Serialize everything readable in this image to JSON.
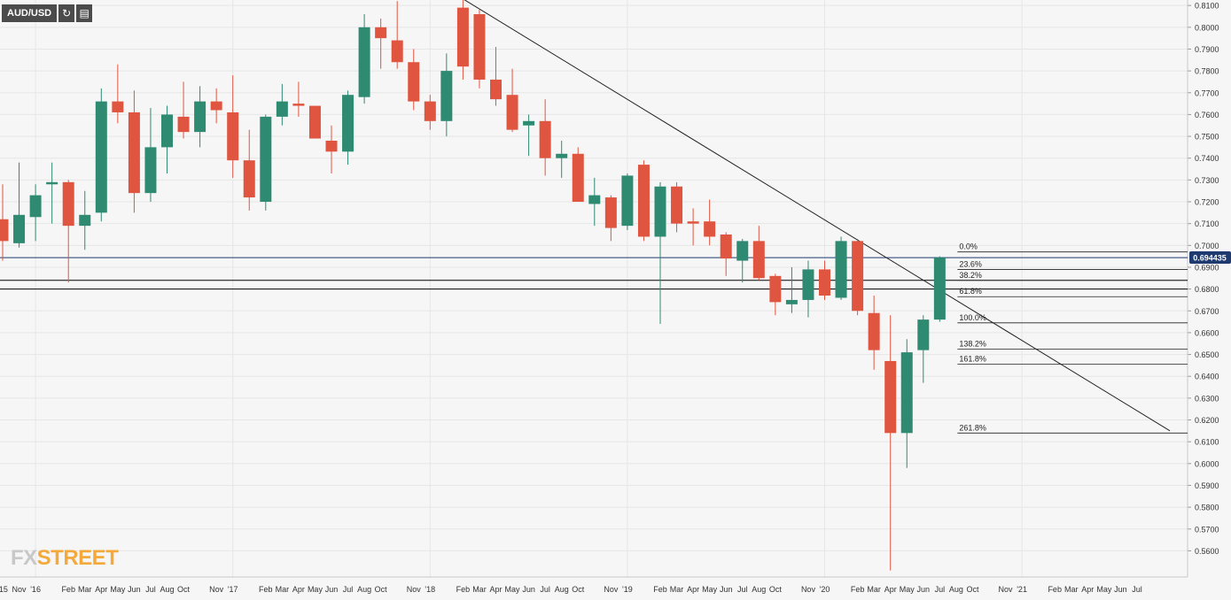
{
  "header": {
    "symbol": "AUD/USD",
    "refresh_icon": "refresh-icon",
    "calendar_icon": "calendar-icon"
  },
  "logo": {
    "part1": "FX",
    "part2": "STREET"
  },
  "colors": {
    "up": "#2f8a72",
    "down": "#e0553f",
    "price_line": "#1e3a6e",
    "grid": "#e6e6e6",
    "text": "#333333"
  },
  "chart_data": {
    "type": "candlestick",
    "interval": "monthly",
    "ylim": [
      0.548,
      0.8125
    ],
    "y_ticks": [
      "0.8100",
      "0.8000",
      "0.7900",
      "0.7800",
      "0.7700",
      "0.7600",
      "0.7500",
      "0.7400",
      "0.7300",
      "0.7200",
      "0.7100",
      "0.7000",
      "0.6900",
      "0.6800",
      "0.6700",
      "0.6600",
      "0.6500",
      "0.6400",
      "0.6300",
      "0.6200",
      "0.6100",
      "0.6000",
      "0.5900",
      "0.5800",
      "0.5700",
      "0.5600"
    ],
    "x_ticks": [
      "'15",
      "Nov",
      "'16",
      "Feb",
      "Mar",
      "Apr",
      "May",
      "Jun",
      "Jul",
      "Aug",
      "Oct",
      "Nov",
      "'17",
      "Feb",
      "Mar",
      "Apr",
      "May",
      "Jun",
      "Jul",
      "Aug",
      "Oct",
      "Nov",
      "'18",
      "Feb",
      "Mar",
      "Apr",
      "May",
      "Jun",
      "Jul",
      "Aug",
      "Oct",
      "Nov",
      "'19",
      "Feb",
      "Mar",
      "Apr",
      "May",
      "Jun",
      "Jul",
      "Aug",
      "Oct",
      "Nov",
      "'20",
      "Feb",
      "Mar",
      "Apr",
      "May",
      "Jun",
      "Jul",
      "Aug",
      "Oct",
      "Nov",
      "'21",
      "Feb",
      "Mar",
      "Apr",
      "May",
      "Jun",
      "Jul"
    ],
    "current_price": "0.694435",
    "candles": [
      {
        "d": "2015-09",
        "o": 0.712,
        "h": 0.728,
        "l": 0.693,
        "c": 0.702
      },
      {
        "d": "2015-10",
        "o": 0.701,
        "h": 0.738,
        "l": 0.699,
        "c": 0.714
      },
      {
        "d": "2015-11",
        "o": 0.713,
        "h": 0.728,
        "l": 0.702,
        "c": 0.723
      },
      {
        "d": "2015-12",
        "o": 0.728,
        "h": 0.738,
        "l": 0.71,
        "c": 0.729
      },
      {
        "d": "2016-01",
        "o": 0.729,
        "h": 0.73,
        "l": 0.683,
        "c": 0.709
      },
      {
        "d": "2016-02",
        "o": 0.709,
        "h": 0.725,
        "l": 0.698,
        "c": 0.714
      },
      {
        "d": "2016-03",
        "o": 0.715,
        "h": 0.772,
        "l": 0.711,
        "c": 0.766
      },
      {
        "d": "2016-04",
        "o": 0.766,
        "h": 0.783,
        "l": 0.756,
        "c": 0.761
      },
      {
        "d": "2016-05",
        "o": 0.761,
        "h": 0.771,
        "l": 0.715,
        "c": 0.724
      },
      {
        "d": "2016-06",
        "o": 0.724,
        "h": 0.763,
        "l": 0.72,
        "c": 0.745
      },
      {
        "d": "2016-07",
        "o": 0.745,
        "h": 0.764,
        "l": 0.733,
        "c": 0.76
      },
      {
        "d": "2016-08",
        "o": 0.759,
        "h": 0.775,
        "l": 0.749,
        "c": 0.752
      },
      {
        "d": "2016-09",
        "o": 0.752,
        "h": 0.773,
        "l": 0.745,
        "c": 0.766
      },
      {
        "d": "2016-10",
        "o": 0.766,
        "h": 0.772,
        "l": 0.756,
        "c": 0.762
      },
      {
        "d": "2016-11",
        "o": 0.761,
        "h": 0.778,
        "l": 0.731,
        "c": 0.739
      },
      {
        "d": "2016-12",
        "o": 0.739,
        "h": 0.753,
        "l": 0.716,
        "c": 0.722
      },
      {
        "d": "2017-01",
        "o": 0.72,
        "h": 0.76,
        "l": 0.716,
        "c": 0.759
      },
      {
        "d": "2017-02",
        "o": 0.759,
        "h": 0.774,
        "l": 0.755,
        "c": 0.766
      },
      {
        "d": "2017-03",
        "o": 0.765,
        "h": 0.775,
        "l": 0.759,
        "c": 0.764
      },
      {
        "d": "2017-04",
        "o": 0.764,
        "h": 0.764,
        "l": 0.749,
        "c": 0.749
      },
      {
        "d": "2017-05",
        "o": 0.748,
        "h": 0.755,
        "l": 0.733,
        "c": 0.743
      },
      {
        "d": "2017-06",
        "o": 0.743,
        "h": 0.771,
        "l": 0.737,
        "c": 0.769
      },
      {
        "d": "2017-07",
        "o": 0.768,
        "h": 0.806,
        "l": 0.765,
        "c": 0.8
      },
      {
        "d": "2017-08",
        "o": 0.8,
        "h": 0.804,
        "l": 0.781,
        "c": 0.795
      },
      {
        "d": "2017-09",
        "o": 0.794,
        "h": 0.812,
        "l": 0.781,
        "c": 0.784
      },
      {
        "d": "2017-10",
        "o": 0.784,
        "h": 0.79,
        "l": 0.762,
        "c": 0.766
      },
      {
        "d": "2017-11",
        "o": 0.766,
        "h": 0.769,
        "l": 0.753,
        "c": 0.757
      },
      {
        "d": "2017-12",
        "o": 0.757,
        "h": 0.788,
        "l": 0.75,
        "c": 0.78
      },
      {
        "d": "2018-01",
        "o": 0.809,
        "h": 0.813,
        "l": 0.776,
        "c": 0.782
      },
      {
        "d": "2018-02",
        "o": 0.806,
        "h": 0.808,
        "l": 0.772,
        "c": 0.776
      },
      {
        "d": "2018-03",
        "o": 0.776,
        "h": 0.791,
        "l": 0.764,
        "c": 0.767
      },
      {
        "d": "2018-04",
        "o": 0.769,
        "h": 0.781,
        "l": 0.752,
        "c": 0.753
      },
      {
        "d": "2018-05",
        "o": 0.755,
        "h": 0.76,
        "l": 0.741,
        "c": 0.757
      },
      {
        "d": "2018-06",
        "o": 0.757,
        "h": 0.767,
        "l": 0.732,
        "c": 0.74
      },
      {
        "d": "2018-07",
        "o": 0.74,
        "h": 0.748,
        "l": 0.731,
        "c": 0.742
      },
      {
        "d": "2018-08",
        "o": 0.742,
        "h": 0.745,
        "l": 0.721,
        "c": 0.72
      },
      {
        "d": "2018-09",
        "o": 0.719,
        "h": 0.731,
        "l": 0.709,
        "c": 0.723
      },
      {
        "d": "2018-10",
        "o": 0.722,
        "h": 0.723,
        "l": 0.702,
        "c": 0.708
      },
      {
        "d": "2018-11",
        "o": 0.709,
        "h": 0.733,
        "l": 0.707,
        "c": 0.732
      },
      {
        "d": "2018-12",
        "o": 0.737,
        "h": 0.739,
        "l": 0.702,
        "c": 0.704
      },
      {
        "d": "2019-01",
        "o": 0.704,
        "h": 0.729,
        "l": 0.664,
        "c": 0.727
      },
      {
        "d": "2019-02",
        "o": 0.727,
        "h": 0.729,
        "l": 0.706,
        "c": 0.71
      },
      {
        "d": "2019-03",
        "o": 0.711,
        "h": 0.717,
        "l": 0.7,
        "c": 0.71
      },
      {
        "d": "2019-04",
        "o": 0.711,
        "h": 0.721,
        "l": 0.7,
        "c": 0.704
      },
      {
        "d": "2019-05",
        "o": 0.705,
        "h": 0.706,
        "l": 0.686,
        "c": 0.694
      },
      {
        "d": "2019-06",
        "o": 0.693,
        "h": 0.703,
        "l": 0.683,
        "c": 0.702
      },
      {
        "d": "2019-07",
        "o": 0.702,
        "h": 0.709,
        "l": 0.684,
        "c": 0.685
      },
      {
        "d": "2019-08",
        "o": 0.686,
        "h": 0.687,
        "l": 0.668,
        "c": 0.674
      },
      {
        "d": "2019-09",
        "o": 0.673,
        "h": 0.69,
        "l": 0.669,
        "c": 0.675
      },
      {
        "d": "2019-10",
        "o": 0.675,
        "h": 0.693,
        "l": 0.667,
        "c": 0.689
      },
      {
        "d": "2019-11",
        "o": 0.689,
        "h": 0.693,
        "l": 0.675,
        "c": 0.677
      },
      {
        "d": "2019-12",
        "o": 0.676,
        "h": 0.704,
        "l": 0.675,
        "c": 0.702
      },
      {
        "d": "2020-01",
        "o": 0.702,
        "h": 0.703,
        "l": 0.668,
        "c": 0.67
      },
      {
        "d": "2020-02",
        "o": 0.669,
        "h": 0.677,
        "l": 0.643,
        "c": 0.652
      },
      {
        "d": "2020-03",
        "o": 0.647,
        "h": 0.668,
        "l": 0.551,
        "c": 0.614
      },
      {
        "d": "2020-04",
        "o": 0.614,
        "h": 0.657,
        "l": 0.598,
        "c": 0.651
      },
      {
        "d": "2020-05",
        "o": 0.652,
        "h": 0.668,
        "l": 0.637,
        "c": 0.666
      },
      {
        "d": "2020-06",
        "o": 0.666,
        "h": 0.695,
        "l": 0.665,
        "c": 0.6944
      }
    ],
    "hlines": [
      {
        "price": 0.6944,
        "color": "#1e3a6e"
      },
      {
        "price": 0.684,
        "color": "#000000"
      },
      {
        "price": 0.68,
        "color": "#000000"
      }
    ],
    "trendline": {
      "from": {
        "d": "2018-01",
        "p": 0.813
      },
      "to": {
        "d": "2021-08",
        "p": 0.615
      }
    },
    "fib_levels": [
      {
        "label": "0.0%",
        "price": 0.697
      },
      {
        "label": "23.6%",
        "price": 0.689
      },
      {
        "label": "38.2%",
        "price": 0.684
      },
      {
        "label": "61.8%",
        "price": 0.6765
      },
      {
        "label": "100.0%",
        "price": 0.6645
      },
      {
        "label": "138.2%",
        "price": 0.6525
      },
      {
        "label": "161.8%",
        "price": 0.6455
      },
      {
        "label": "261.8%",
        "price": 0.614
      }
    ]
  }
}
